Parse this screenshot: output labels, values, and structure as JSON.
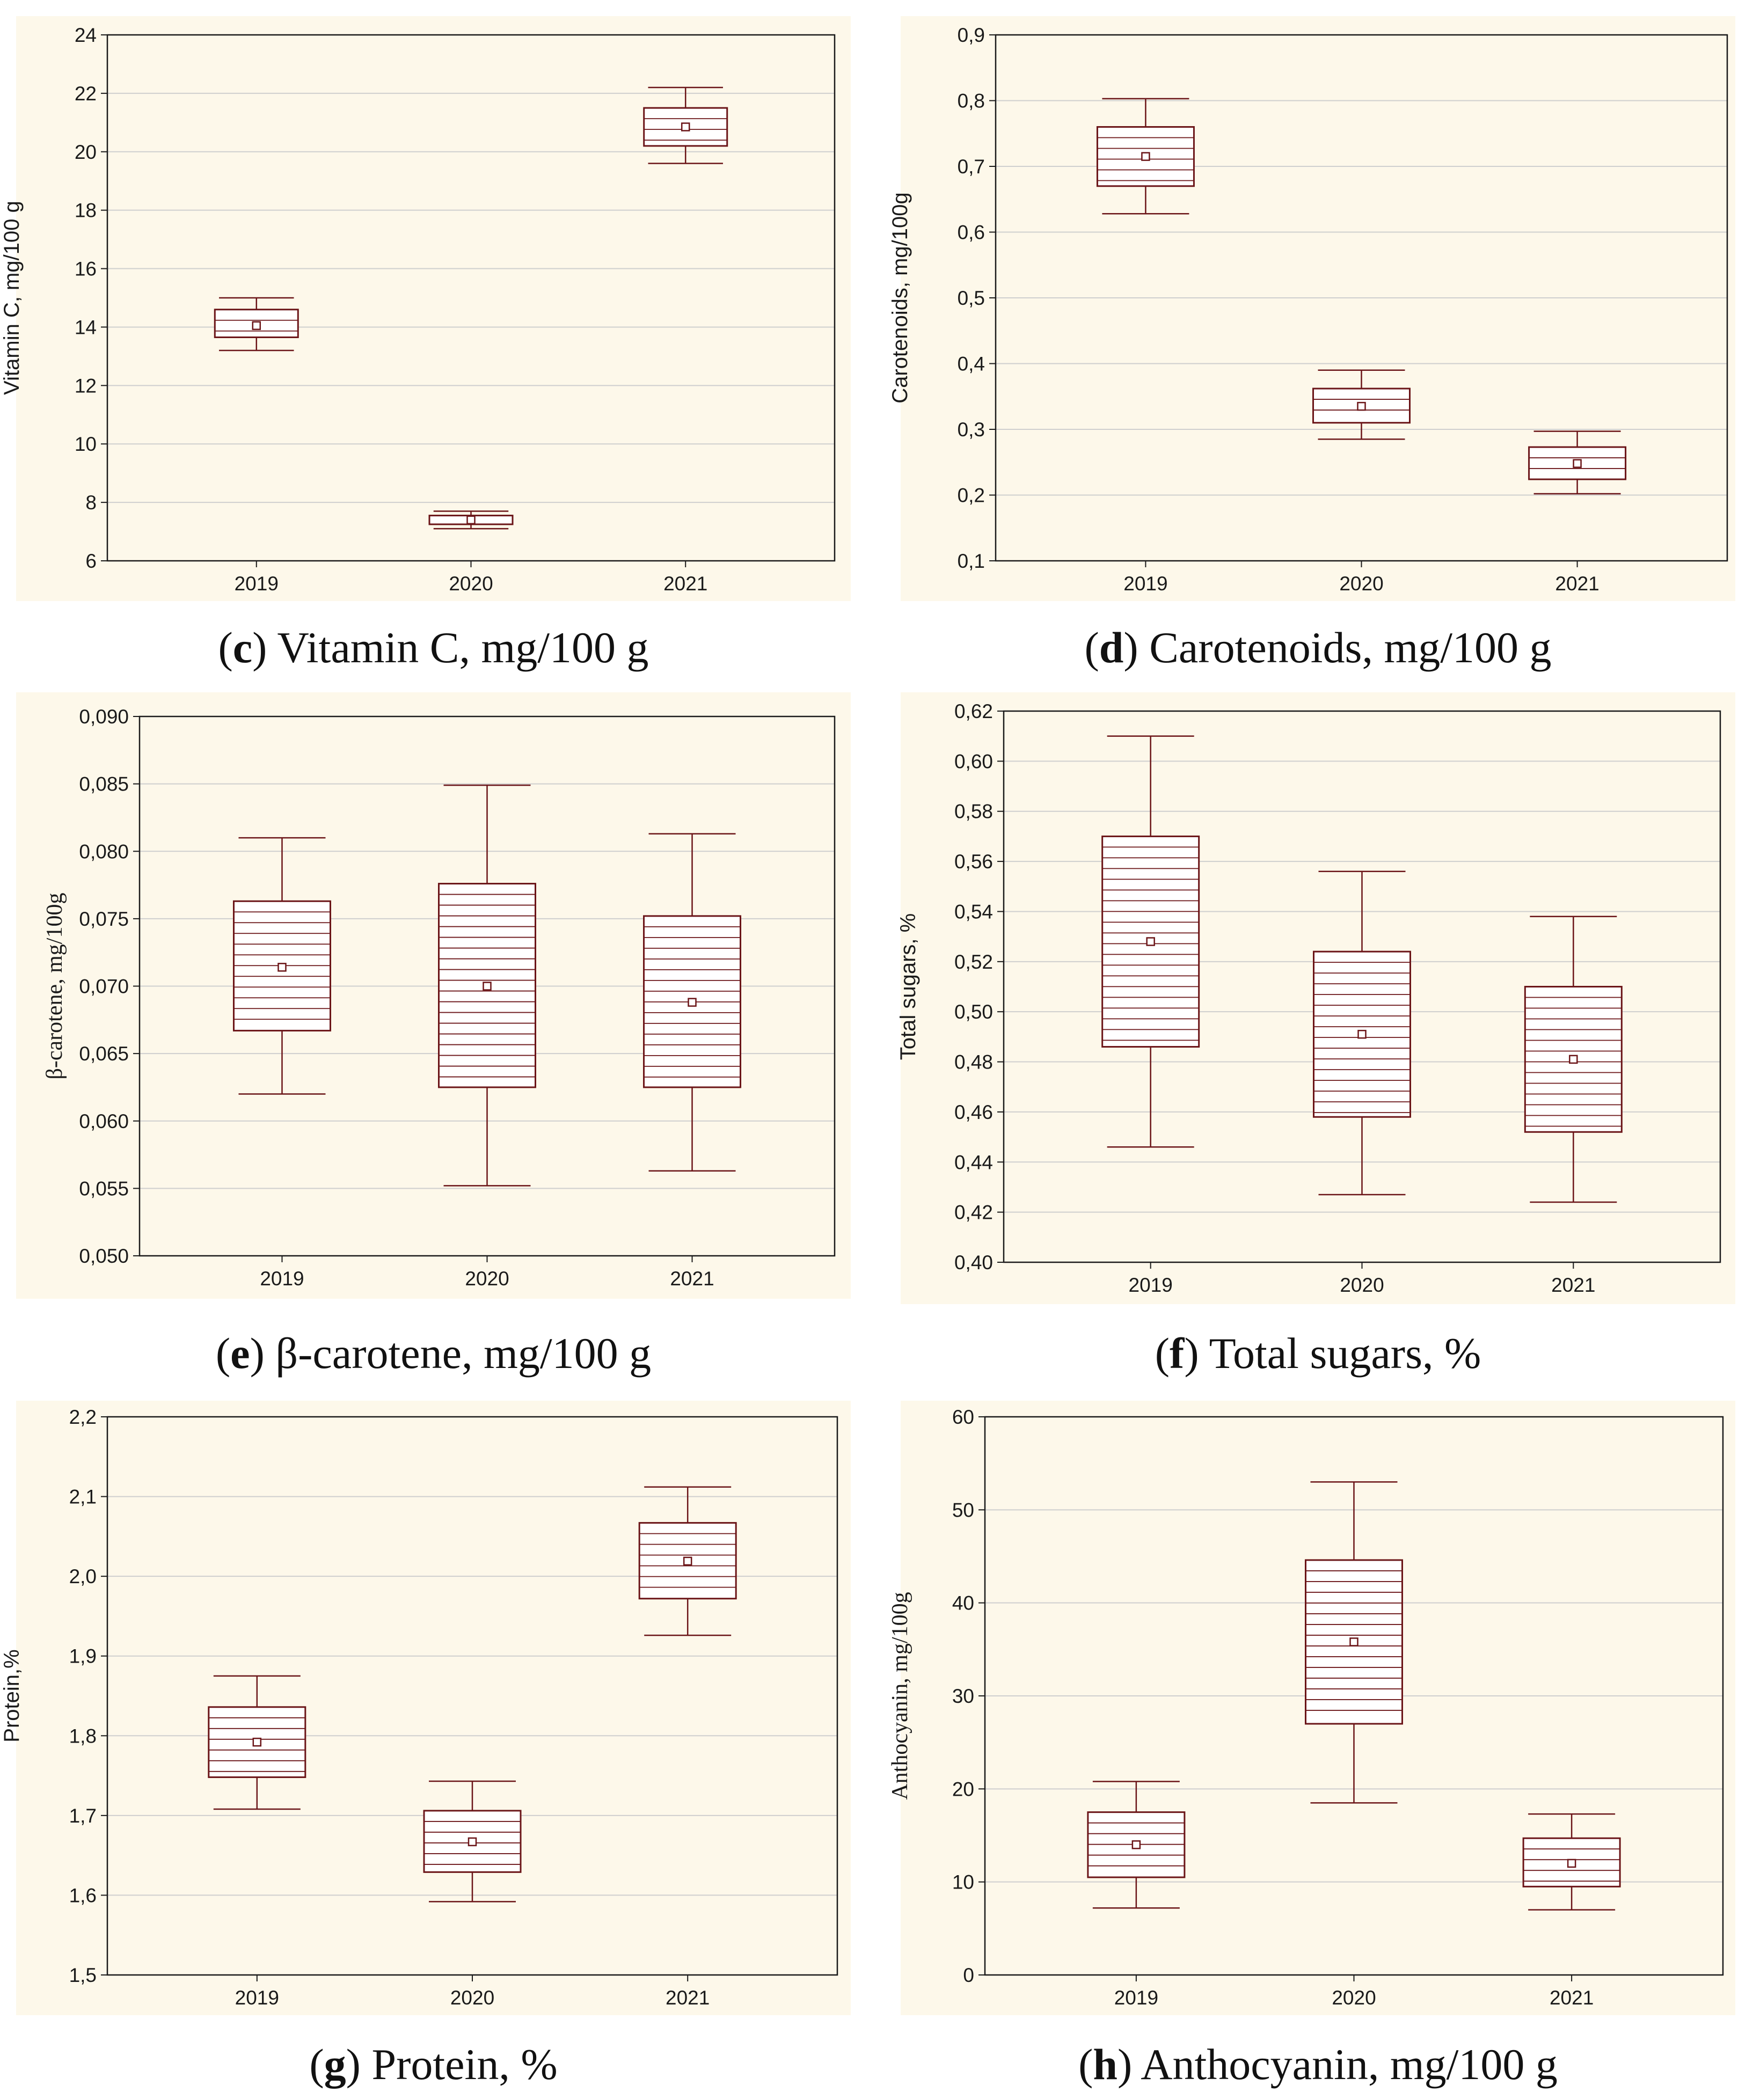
{
  "chart_data": [
    {
      "id": "c",
      "type": "boxplot",
      "caption_letter": "c",
      "caption_text": "Vitamin C, mg/100 g",
      "ylabel": "Vitamin C, mg/100 g",
      "ylabel_font": "sans",
      "ylim": [
        6,
        24
      ],
      "yticks": [
        "6",
        "8",
        "10",
        "12",
        "14",
        "16",
        "18",
        "20",
        "22",
        "24"
      ],
      "ytick_values": [
        6,
        8,
        10,
        12,
        14,
        16,
        18,
        20,
        22,
        24
      ],
      "categories": [
        "2019",
        "2020",
        "2021"
      ],
      "boxes": [
        {
          "whisker_low": 13.2,
          "q1": 13.65,
          "median": 14.1,
          "q3": 14.6,
          "whisker_high": 15.0,
          "mean": 14.05
        },
        {
          "whisker_low": 7.1,
          "q1": 7.25,
          "median": 7.4,
          "q3": 7.55,
          "whisker_high": 7.7,
          "mean": 7.4
        },
        {
          "whisker_low": 19.6,
          "q1": 20.2,
          "median": 20.85,
          "q3": 21.5,
          "whisker_high": 22.2,
          "mean": 20.85
        }
      ]
    },
    {
      "id": "d",
      "type": "boxplot",
      "caption_letter": "d",
      "caption_text": "Carotenoids, mg/100 g",
      "ylabel": "Carotenoids, mg/100g",
      "ylabel_font": "sans",
      "ylim": [
        0.1,
        0.9
      ],
      "yticks": [
        "0,1",
        "0,2",
        "0,3",
        "0,4",
        "0,5",
        "0,6",
        "0,7",
        "0,8",
        "0,9"
      ],
      "ytick_values": [
        0.1,
        0.2,
        0.3,
        0.4,
        0.5,
        0.6,
        0.7,
        0.8,
        0.9
      ],
      "categories": [
        "2019",
        "2020",
        "2021"
      ],
      "boxes": [
        {
          "whisker_low": 0.628,
          "q1": 0.67,
          "median": 0.715,
          "q3": 0.76,
          "whisker_high": 0.803,
          "mean": 0.715
        },
        {
          "whisker_low": 0.285,
          "q1": 0.31,
          "median": 0.335,
          "q3": 0.362,
          "whisker_high": 0.39,
          "mean": 0.335
        },
        {
          "whisker_low": 0.202,
          "q1": 0.224,
          "median": 0.248,
          "q3": 0.273,
          "whisker_high": 0.297,
          "mean": 0.248
        }
      ]
    },
    {
      "id": "e",
      "type": "boxplot",
      "caption_letter": "e",
      "caption_text": "β-carotene, mg/100 g",
      "ylabel": "β-carotene, mg/100g",
      "ylabel_font": "serif",
      "ylim": [
        0.05,
        0.09
      ],
      "yticks": [
        "0,050",
        "0,055",
        "0,060",
        "0,065",
        "0,070",
        "0,075",
        "0,080",
        "0,085",
        "0,090"
      ],
      "ytick_values": [
        0.05,
        0.055,
        0.06,
        0.065,
        0.07,
        0.075,
        0.08,
        0.085,
        0.09
      ],
      "categories": [
        "2019",
        "2020",
        "2021"
      ],
      "boxes": [
        {
          "whisker_low": 0.062,
          "q1": 0.0667,
          "median": 0.0714,
          "q3": 0.0763,
          "whisker_high": 0.081,
          "mean": 0.0714
        },
        {
          "whisker_low": 0.0552,
          "q1": 0.0625,
          "median": 0.07,
          "q3": 0.0776,
          "whisker_high": 0.0849,
          "mean": 0.07
        },
        {
          "whisker_low": 0.0563,
          "q1": 0.0625,
          "median": 0.0688,
          "q3": 0.0752,
          "whisker_high": 0.0813,
          "mean": 0.0688
        }
      ]
    },
    {
      "id": "f",
      "type": "boxplot",
      "caption_letter": "f",
      "caption_text": "Total sugars, %",
      "ylabel": "Total sugars, %",
      "ylabel_font": "sans",
      "ylim": [
        0.4,
        0.62
      ],
      "yticks": [
        "0,40",
        "0,42",
        "0,44",
        "0,46",
        "0,48",
        "0,50",
        "0,52",
        "0,54",
        "0,56",
        "0,58",
        "0,60",
        "0,62"
      ],
      "ytick_values": [
        0.4,
        0.42,
        0.44,
        0.46,
        0.48,
        0.5,
        0.52,
        0.54,
        0.56,
        0.58,
        0.6,
        0.62
      ],
      "categories": [
        "2019",
        "2020",
        "2021"
      ],
      "boxes": [
        {
          "whisker_low": 0.446,
          "q1": 0.486,
          "median": 0.528,
          "q3": 0.57,
          "whisker_high": 0.61,
          "mean": 0.528
        },
        {
          "whisker_low": 0.427,
          "q1": 0.458,
          "median": 0.491,
          "q3": 0.524,
          "whisker_high": 0.556,
          "mean": 0.491
        },
        {
          "whisker_low": 0.424,
          "q1": 0.452,
          "median": 0.481,
          "q3": 0.51,
          "whisker_high": 0.538,
          "mean": 0.481
        }
      ]
    },
    {
      "id": "g",
      "type": "boxplot",
      "caption_letter": "g",
      "caption_text": "Protein, %",
      "ylabel": "Protein,%",
      "ylabel_font": "sans",
      "ylim": [
        1.5,
        2.2
      ],
      "yticks": [
        "1,5",
        "1,6",
        "1,7",
        "1,8",
        "1,9",
        "2,0",
        "2,1",
        "2,2"
      ],
      "ytick_values": [
        1.5,
        1.6,
        1.7,
        1.8,
        1.9,
        2.0,
        2.1,
        2.2
      ],
      "categories": [
        "2019",
        "2020",
        "2021"
      ],
      "boxes": [
        {
          "whisker_low": 1.708,
          "q1": 1.748,
          "median": 1.792,
          "q3": 1.836,
          "whisker_high": 1.875,
          "mean": 1.792
        },
        {
          "whisker_low": 1.592,
          "q1": 1.629,
          "median": 1.667,
          "q3": 1.706,
          "whisker_high": 1.743,
          "mean": 1.667
        },
        {
          "whisker_low": 1.926,
          "q1": 1.972,
          "median": 2.019,
          "q3": 2.067,
          "whisker_high": 2.112,
          "mean": 2.019
        }
      ]
    },
    {
      "id": "h",
      "type": "boxplot",
      "caption_letter": "h",
      "caption_text": "Anthocyanin, mg/100 g",
      "ylabel": "Anthocyanin, mg/100g",
      "ylabel_font": "serif",
      "ylim": [
        0,
        60
      ],
      "yticks": [
        "0",
        "10",
        "20",
        "30",
        "40",
        "50",
        "60"
      ],
      "ytick_values": [
        0,
        10,
        20,
        30,
        40,
        50,
        60
      ],
      "categories": [
        "2019",
        "2020",
        "2021"
      ],
      "boxes": [
        {
          "whisker_low": 7.2,
          "q1": 10.5,
          "median": 14.0,
          "q3": 17.5,
          "whisker_high": 20.8,
          "mean": 14.0
        },
        {
          "whisker_low": 18.5,
          "q1": 27.0,
          "median": 35.8,
          "q3": 44.6,
          "whisker_high": 53.0,
          "mean": 35.8
        },
        {
          "whisker_low": 7.0,
          "q1": 9.5,
          "median": 12.0,
          "q3": 14.7,
          "whisker_high": 17.3,
          "mean": 12.0
        }
      ]
    }
  ],
  "colors": {
    "box": "#6b1518",
    "grid": "#cfcfcf",
    "panel_bg": "#fdf8ea",
    "axis": "#1a1a1a"
  }
}
